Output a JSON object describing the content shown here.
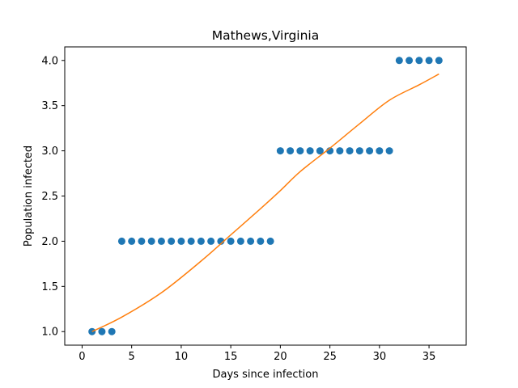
{
  "chart_data": {
    "type": "scatter",
    "title": "Mathews,Virginia",
    "xlabel": "Days since infection",
    "ylabel": "Population infected",
    "xlim": [
      -1.75,
      38.75
    ],
    "ylim": [
      0.85,
      4.15
    ],
    "xticks": [
      0,
      5,
      10,
      15,
      20,
      25,
      30,
      35
    ],
    "xtick_labels": [
      "0",
      "5",
      "10",
      "15",
      "20",
      "25",
      "30",
      "35"
    ],
    "yticks": [
      1.0,
      1.5,
      2.0,
      2.5,
      3.0,
      3.5,
      4.0
    ],
    "ytick_labels": [
      "1.0",
      "1.5",
      "2.0",
      "2.5",
      "3.0",
      "3.5",
      "4.0"
    ],
    "grid": false,
    "series": [
      {
        "kind": "scatter",
        "color": "#1f77b4",
        "x": [
          1,
          2,
          3,
          4,
          5,
          6,
          7,
          8,
          9,
          10,
          11,
          12,
          13,
          14,
          15,
          16,
          17,
          18,
          19,
          20,
          21,
          22,
          23,
          24,
          25,
          26,
          27,
          28,
          29,
          30,
          31,
          32,
          33,
          34,
          35,
          36
        ],
        "values": [
          1,
          1,
          1,
          2,
          2,
          2,
          2,
          2,
          2,
          2,
          2,
          2,
          2,
          2,
          2,
          2,
          2,
          2,
          2,
          3,
          3,
          3,
          3,
          3,
          3,
          3,
          3,
          3,
          3,
          3,
          3,
          4,
          4,
          4,
          4,
          4
        ]
      },
      {
        "kind": "line",
        "color": "#ff7f0e",
        "x": [
          1,
          4,
          8,
          12,
          15,
          18,
          20,
          22,
          25,
          28,
          31,
          34,
          36
        ],
        "values": [
          1.0,
          1.16,
          1.43,
          1.78,
          2.07,
          2.36,
          2.56,
          2.77,
          3.03,
          3.3,
          3.56,
          3.73,
          3.85
        ]
      }
    ]
  }
}
